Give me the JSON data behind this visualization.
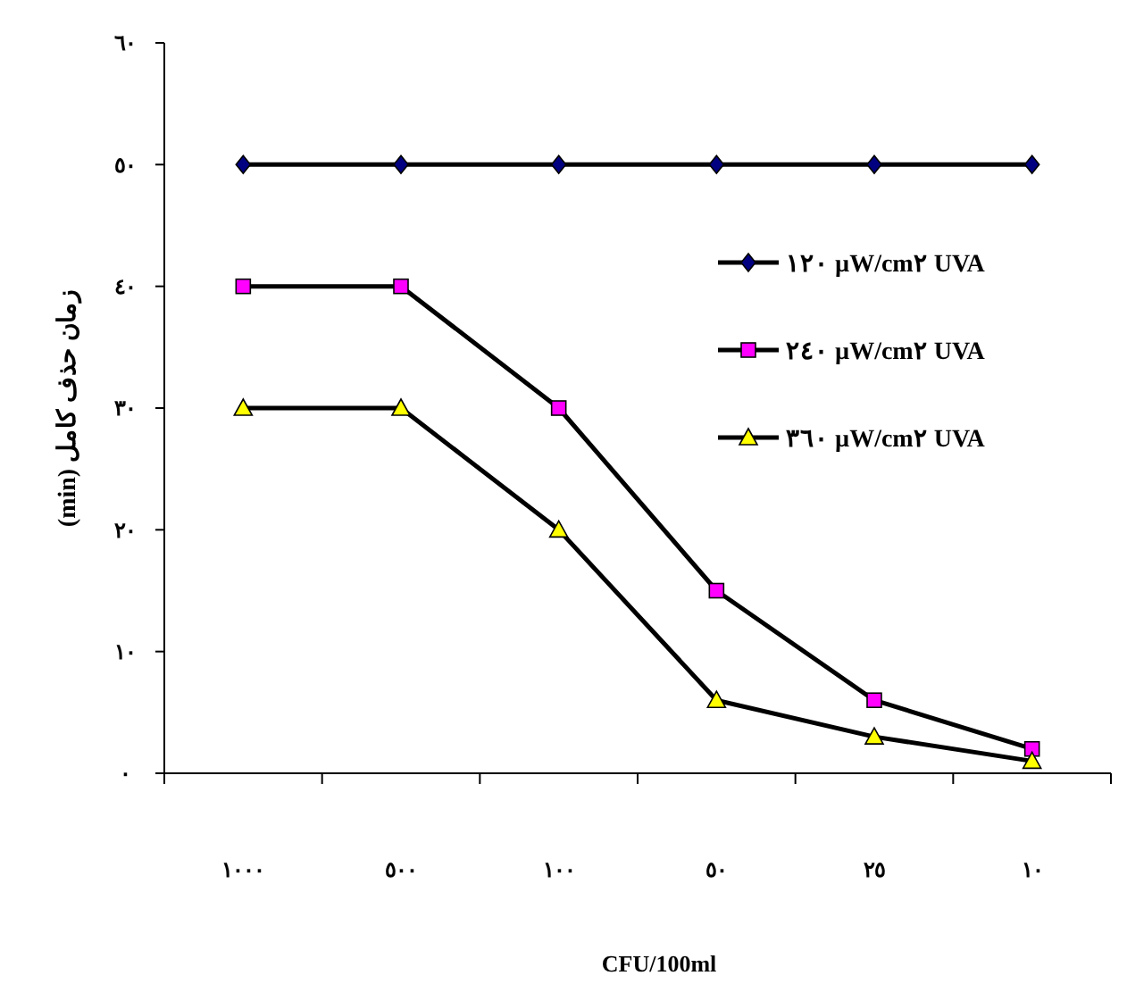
{
  "chart_data": {
    "type": "line",
    "xlabel": "CFU/100ml",
    "ylabel": "زمان حذف کامل (min)",
    "categories": [
      "١٠٠٠",
      "٥٠٠",
      "١٠٠",
      "٥٠",
      "٢٥",
      "١٠"
    ],
    "ylim": [
      0,
      60
    ],
    "yticks": [
      {
        "value": 0,
        "label": "٠"
      },
      {
        "value": 10,
        "label": "١٠"
      },
      {
        "value": 20,
        "label": "٢٠"
      },
      {
        "value": 30,
        "label": "٣٠"
      },
      {
        "value": 40,
        "label": "٤٠"
      },
      {
        "value": 50,
        "label": "٥٠"
      },
      {
        "value": 60,
        "label": "٦٠"
      }
    ],
    "grid": false,
    "legend": "right",
    "series": [
      {
        "name": "١٢٠ µW/cm٢ UVA",
        "color": "#000080",
        "marker": "diamond",
        "values": [
          50,
          50,
          50,
          50,
          50,
          50
        ]
      },
      {
        "name": "٢٤٠ µW/cm٢ UVA",
        "color": "#ff00ff",
        "marker": "square",
        "values": [
          40,
          40,
          30,
          15,
          6,
          2
        ]
      },
      {
        "name": "٣٦٠ µW/cm٢ UVA",
        "color": "#ffff00",
        "marker": "triangle",
        "values": [
          30,
          30,
          20,
          6,
          3,
          1
        ]
      }
    ]
  }
}
